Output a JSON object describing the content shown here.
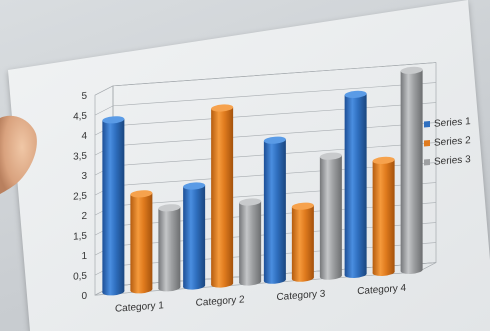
{
  "chart_data": {
    "type": "bar",
    "style": "3d-cylinder",
    "categories": [
      "Category 1",
      "Category 2",
      "Category 3",
      "Category 4"
    ],
    "series": [
      {
        "name": "Series 1",
        "color": "#2f6fbf",
        "values": [
          4.3,
          2.5,
          3.5,
          4.5
        ]
      },
      {
        "name": "Series 2",
        "color": "#e07b1e",
        "values": [
          2.4,
          4.4,
          1.8,
          2.8
        ]
      },
      {
        "name": "Series 3",
        "color": "#9ea0a2",
        "values": [
          2.0,
          2.0,
          3.0,
          5.0
        ]
      }
    ],
    "y_ticks": [
      "0",
      "0,5",
      "1",
      "1,5",
      "2",
      "2,5",
      "3",
      "3,5",
      "4",
      "4,5",
      "5"
    ],
    "ylim": [
      0,
      5
    ],
    "grid": true,
    "legend_position": "right",
    "title": "",
    "xlabel": "",
    "ylabel": ""
  }
}
